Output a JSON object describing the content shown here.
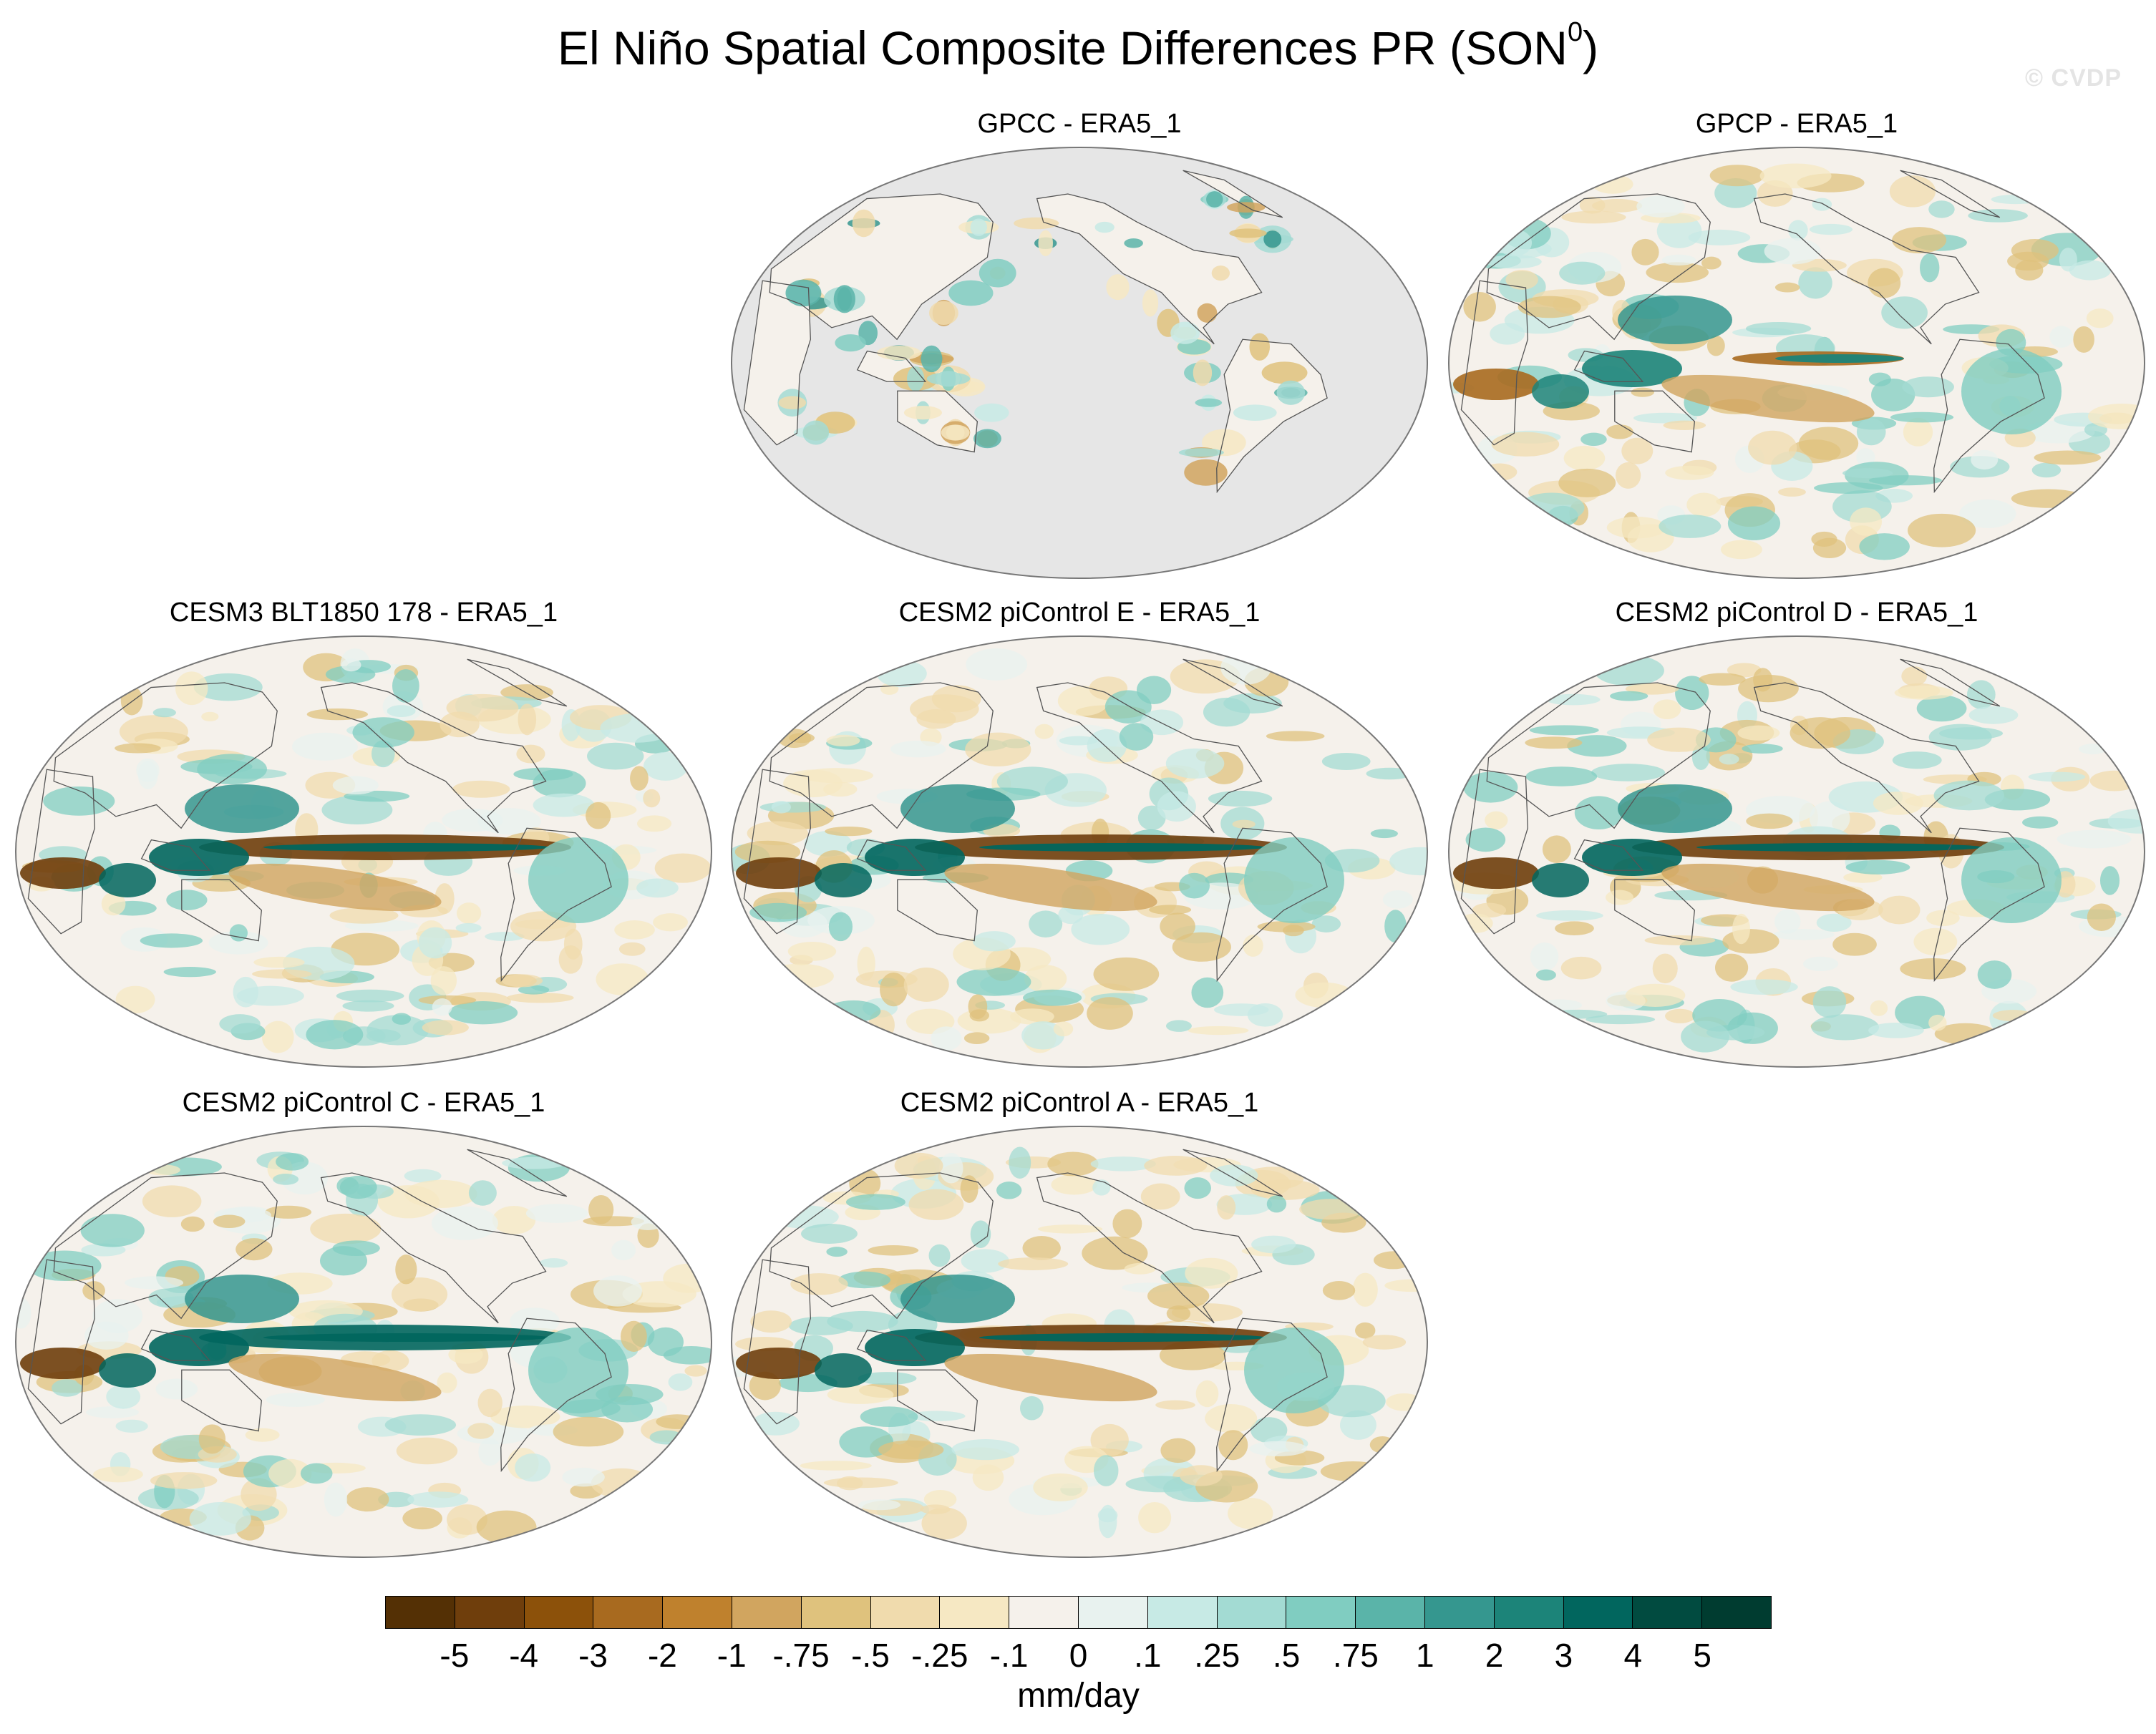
{
  "title": {
    "main": "El Niño Spatial Composite Differences PR (SON",
    "superscript": "0",
    "close": ")"
  },
  "watermark": "© CVDP",
  "panels": [
    {
      "id": "gpcc",
      "label": "GPCC - ERA5_1",
      "kind": "land-only"
    },
    {
      "id": "gpcp",
      "label": "GPCP - ERA5_1",
      "kind": "obs"
    },
    {
      "id": "cesm3",
      "label": "CESM3 BLT1850 178 - ERA5_1",
      "kind": "model-a"
    },
    {
      "id": "cesm2e",
      "label": "CESM2 piControl E - ERA5_1",
      "kind": "model-b"
    },
    {
      "id": "cesm2d",
      "label": "CESM2 piControl D - ERA5_1",
      "kind": "model-a"
    },
    {
      "id": "cesm2c",
      "label": "CESM2 piControl C - ERA5_1",
      "kind": "model-c"
    },
    {
      "id": "cesm2a",
      "label": "CESM2 piControl A - ERA5_1",
      "kind": "model-b"
    }
  ],
  "colorbar": {
    "colors": [
      "#543005",
      "#6f3e0c",
      "#8c510a",
      "#a86a1f",
      "#bf812d",
      "#d1a55f",
      "#dfc27d",
      "#f0dbad",
      "#f6e8c3",
      "#f5f1eb",
      "#e8f2ef",
      "#c7eae5",
      "#a3dbd3",
      "#80cdc1",
      "#5ab4a9",
      "#35978f",
      "#1c8479",
      "#01665e",
      "#014b40",
      "#003c30"
    ],
    "labels": [
      "-5",
      "-4",
      "-3",
      "-2",
      "-1",
      "-.75",
      "-.5",
      "-.25",
      "-.1",
      "0",
      ".1",
      ".25",
      ".5",
      ".75",
      "1",
      "2",
      "3",
      "4",
      "5"
    ],
    "units": "mm/day"
  },
  "colors": {
    "missing": "#e6e6e6",
    "coast": "#555555",
    "outline": "#777777"
  }
}
